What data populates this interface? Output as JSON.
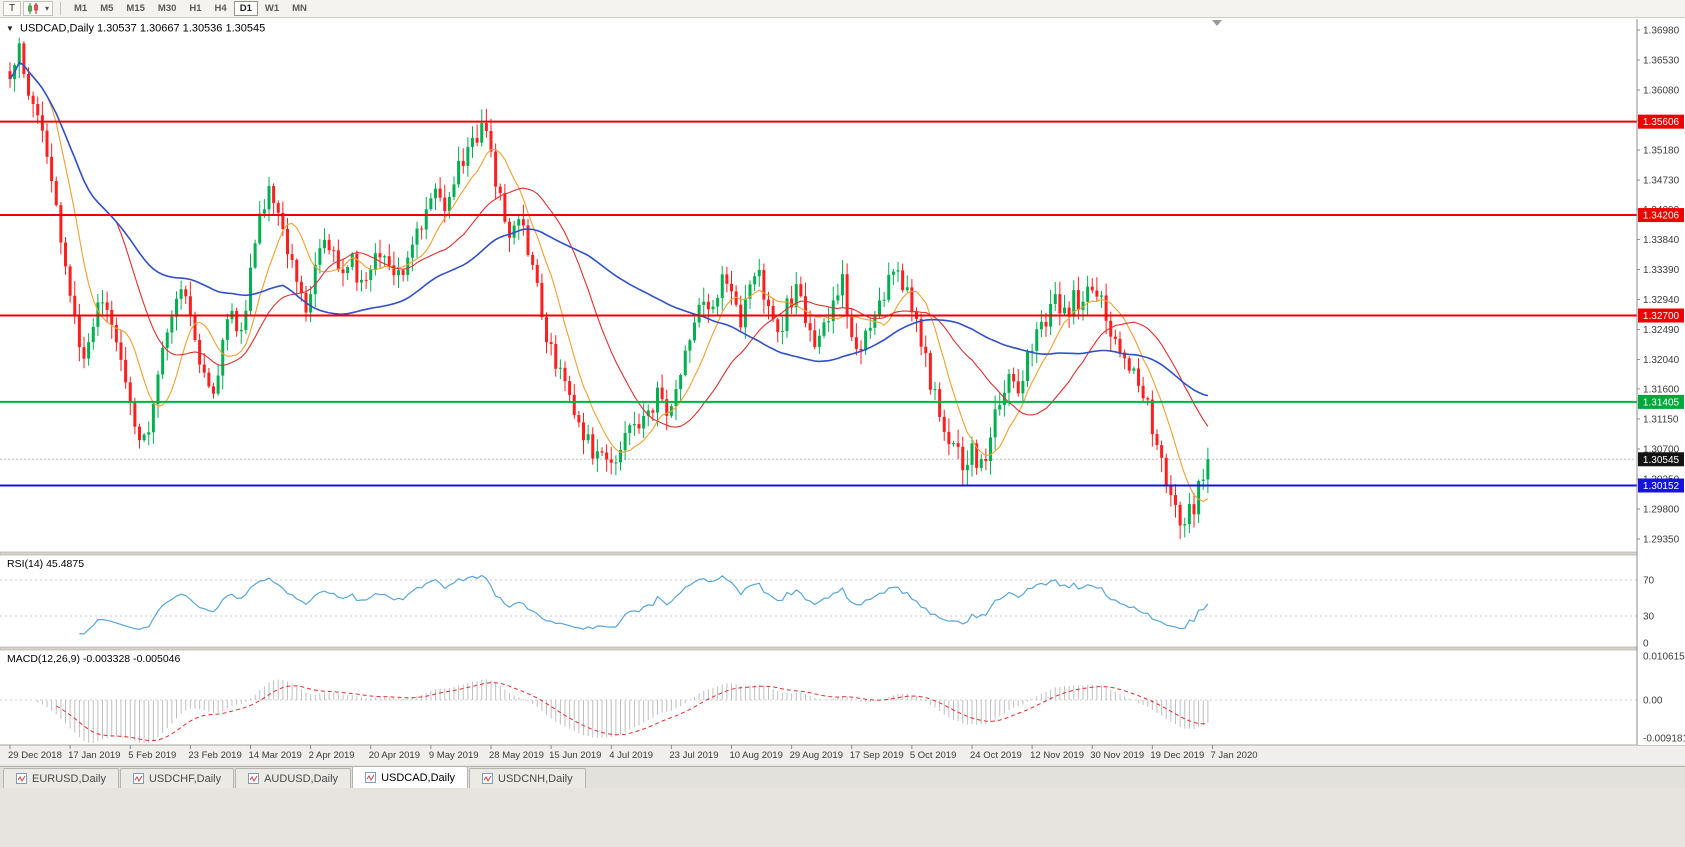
{
  "toolbar": {
    "tool_t_label": "T",
    "chart_type_button": "candlestick-chart-type",
    "timeframes": [
      "M1",
      "M5",
      "M15",
      "M30",
      "H1",
      "H4",
      "D1",
      "W1",
      "MN"
    ],
    "active_timeframe": "D1"
  },
  "main_chart": {
    "collapse_icon": "▼",
    "symbol": "USDCAD,Daily",
    "ohlc": {
      "open": "1.30537",
      "high": "1.30667",
      "low": "1.30536",
      "close": "1.30545"
    }
  },
  "price_axis": {
    "ticks": [
      "1.36980",
      "1.36530",
      "1.36080",
      "1.35630",
      "1.35180",
      "1.34730",
      "1.34290",
      "1.33840",
      "1.33390",
      "1.32940",
      "1.32490",
      "1.32040",
      "1.31600",
      "1.31150",
      "1.30700",
      "1.30250",
      "1.29800",
      "1.29350"
    ],
    "badges": [
      {
        "value": "1.35606",
        "price": 1.35606,
        "color": "#ef0000",
        "text_color": "#ffffff"
      },
      {
        "value": "1.34206",
        "price": 1.34206,
        "color": "#ef0000",
        "text_color": "#ffffff"
      },
      {
        "value": "1.32700",
        "price": 1.327,
        "color": "#ef0000",
        "text_color": "#ffffff"
      },
      {
        "value": "1.31405",
        "price": 1.31405,
        "color": "#00a83a",
        "text_color": "#ffffff"
      },
      {
        "value": "1.30545",
        "price": 1.30545,
        "color": "#141414",
        "text_color": "#ffffff"
      },
      {
        "value": "1.30152",
        "price": 1.30152,
        "color": "#1414dc",
        "text_color": "#ffffff"
      }
    ]
  },
  "rsi_panel": {
    "label": "RSI(14)",
    "value": "45.4875",
    "levels": [
      {
        "v": 70,
        "label": "70"
      },
      {
        "v": 30,
        "label": "30"
      },
      {
        "v": 0,
        "label": "0"
      }
    ],
    "line_color": "#58a6d8"
  },
  "macd_panel": {
    "label": "MACD(12,26,9)",
    "values": "-0.003328 -0.005046",
    "axis_labels": [
      {
        "v": 0.010615,
        "label": "0.010615"
      },
      {
        "v": 0,
        "label": "0.00"
      },
      {
        "v": -0.009181,
        "label": "-0.009181"
      }
    ],
    "histogram_color": "#bfbfbf",
    "signal_color": "#e03030"
  },
  "tabs": [
    {
      "label": "EURUSD,Daily",
      "active": false
    },
    {
      "label": "USDCHF,Daily",
      "active": false
    },
    {
      "label": "AUDUSD,Daily",
      "active": false
    },
    {
      "label": "USDCAD,Daily",
      "active": true
    },
    {
      "label": "USDCNH,Daily",
      "active": false
    }
  ],
  "chart_data": {
    "type": "candlestick",
    "symbol": "USDCAD",
    "timeframe": "Daily",
    "n_candles": 260,
    "ylim": [
      1.29155,
      1.37145
    ],
    "candle_up_color": "#00b050",
    "candle_down_color": "#ff1f1f",
    "x_labels": [
      "29 Dec 2018",
      "17 Jan 2019",
      "5 Feb 2019",
      "23 Feb 2019",
      "14 Mar 2019",
      "2 Apr 2019",
      "20 Apr 2019",
      "9 May 2019",
      "28 May 2019",
      "15 Jun 2019",
      "4 Jul 2019",
      "23 Jul 2019",
      "10 Aug 2019",
      "29 Aug 2019",
      "17 Sep 2019",
      "5 Oct 2019",
      "24 Oct 2019",
      "12 Nov 2019",
      "30 Nov 2019",
      "19 Dec 2019",
      "7 Jan 2020"
    ],
    "candles_per_label": 13,
    "price_keypoints": [
      [
        0,
        1.364
      ],
      [
        2,
        1.3662
      ],
      [
        4,
        1.3605
      ],
      [
        6,
        1.357
      ],
      [
        8,
        1.3495
      ],
      [
        10,
        1.342
      ],
      [
        12,
        1.334
      ],
      [
        14,
        1.326
      ],
      [
        16,
        1.32
      ],
      [
        18,
        1.3255
      ],
      [
        20,
        1.33
      ],
      [
        22,
        1.327
      ],
      [
        24,
        1.3205
      ],
      [
        26,
        1.313
      ],
      [
        28,
        1.3075
      ],
      [
        30,
        1.311
      ],
      [
        32,
        1.3195
      ],
      [
        34,
        1.3255
      ],
      [
        36,
        1.33
      ],
      [
        38,
        1.3285
      ],
      [
        40,
        1.3225
      ],
      [
        42,
        1.3175
      ],
      [
        44,
        1.315
      ],
      [
        46,
        1.323
      ],
      [
        48,
        1.328
      ],
      [
        50,
        1.3245
      ],
      [
        52,
        1.333
      ],
      [
        54,
        1.3415
      ],
      [
        56,
        1.3465
      ],
      [
        58,
        1.3435
      ],
      [
        60,
        1.337
      ],
      [
        62,
        1.332
      ],
      [
        64,
        1.328
      ],
      [
        66,
        1.335
      ],
      [
        68,
        1.34
      ],
      [
        70,
        1.336
      ],
      [
        72,
        1.3325
      ],
      [
        74,
        1.335
      ],
      [
        76,
        1.3315
      ],
      [
        78,
        1.334
      ],
      [
        80,
        1.337
      ],
      [
        82,
        1.3345
      ],
      [
        84,
        1.3325
      ],
      [
        86,
        1.336
      ],
      [
        88,
        1.34
      ],
      [
        90,
        1.343
      ],
      [
        92,
        1.3455
      ],
      [
        94,
        1.344
      ],
      [
        96,
        1.347
      ],
      [
        98,
        1.35
      ],
      [
        100,
        1.353
      ],
      [
        102,
        1.3555
      ],
      [
        104,
        1.3505
      ],
      [
        106,
        1.3445
      ],
      [
        108,
        1.3385
      ],
      [
        110,
        1.342
      ],
      [
        112,
        1.337
      ],
      [
        114,
        1.3305
      ],
      [
        116,
        1.3245
      ],
      [
        118,
        1.3195
      ],
      [
        120,
        1.3155
      ],
      [
        122,
        1.312
      ],
      [
        124,
        1.3095
      ],
      [
        126,
        1.307
      ],
      [
        128,
        1.305
      ],
      [
        130,
        1.304
      ],
      [
        132,
        1.308
      ],
      [
        134,
        1.311
      ],
      [
        136,
        1.309
      ],
      [
        138,
        1.312
      ],
      [
        140,
        1.315
      ],
      [
        142,
        1.313
      ],
      [
        144,
        1.317
      ],
      [
        146,
        1.322
      ],
      [
        148,
        1.3265
      ],
      [
        150,
        1.33
      ],
      [
        152,
        1.328
      ],
      [
        154,
        1.332
      ],
      [
        156,
        1.329
      ],
      [
        158,
        1.326
      ],
      [
        160,
        1.33
      ],
      [
        162,
        1.333
      ],
      [
        164,
        1.329
      ],
      [
        166,
        1.3245
      ],
      [
        168,
        1.328
      ],
      [
        170,
        1.331
      ],
      [
        172,
        1.327
      ],
      [
        174,
        1.3225
      ],
      [
        176,
        1.325
      ],
      [
        178,
        1.329
      ],
      [
        180,
        1.332
      ],
      [
        182,
        1.324
      ],
      [
        184,
        1.322
      ],
      [
        186,
        1.326
      ],
      [
        188,
        1.329
      ],
      [
        190,
        1.332
      ],
      [
        192,
        1.3335
      ],
      [
        194,
        1.33
      ],
      [
        196,
        1.325
      ],
      [
        198,
        1.32
      ],
      [
        200,
        1.315
      ],
      [
        202,
        1.31
      ],
      [
        204,
        1.307
      ],
      [
        206,
        1.305
      ],
      [
        208,
        1.307
      ],
      [
        210,
        1.3045
      ],
      [
        212,
        1.309
      ],
      [
        214,
        1.314
      ],
      [
        216,
        1.318
      ],
      [
        218,
        1.316
      ],
      [
        220,
        1.32
      ],
      [
        222,
        1.324
      ],
      [
        224,
        1.327
      ],
      [
        226,
        1.329
      ],
      [
        228,
        1.327
      ],
      [
        230,
        1.33
      ],
      [
        232,
        1.329
      ],
      [
        234,
        1.331
      ],
      [
        236,
        1.329
      ],
      [
        238,
        1.325
      ],
      [
        240,
        1.322
      ],
      [
        242,
        1.318
      ],
      [
        244,
        1.317
      ],
      [
        246,
        1.313
      ],
      [
        248,
        1.308
      ],
      [
        250,
        1.302
      ],
      [
        252,
        1.298
      ],
      [
        254,
        1.296
      ],
      [
        256,
        1.2985
      ],
      [
        258,
        1.304
      ],
      [
        259,
        1.30545
      ]
    ],
    "horizontal_lines": [
      {
        "price": 1.35606,
        "color": "#ef0000",
        "width": 2,
        "role": "resistance"
      },
      {
        "price": 1.34206,
        "color": "#ef0000",
        "width": 2,
        "role": "resistance"
      },
      {
        "price": 1.327,
        "color": "#ef0000",
        "width": 2,
        "role": "resistance"
      },
      {
        "price": 1.31405,
        "color": "#00b33c",
        "width": 2,
        "role": "support"
      },
      {
        "price": 1.30152,
        "color": "#1414dc",
        "width": 2,
        "role": "support"
      },
      {
        "price": 1.30545,
        "color": "#bdbdbd",
        "width": 1,
        "role": "current-price"
      }
    ],
    "moving_averages": [
      {
        "period": 9,
        "color": "#f0a030"
      },
      {
        "period": 24,
        "color": "#e03030"
      },
      {
        "period": 60,
        "color": "#3050c8"
      }
    ],
    "indicators": {
      "rsi": {
        "period": 14,
        "current": 45.4875,
        "range": [
          0,
          100
        ],
        "levels": [
          70,
          30
        ]
      },
      "macd": {
        "fast": 12,
        "slow": 26,
        "signal": 9,
        "macd_value": -0.003328,
        "signal_value": -0.005046,
        "range": [
          -0.009181,
          0.010615
        ]
      }
    }
  }
}
